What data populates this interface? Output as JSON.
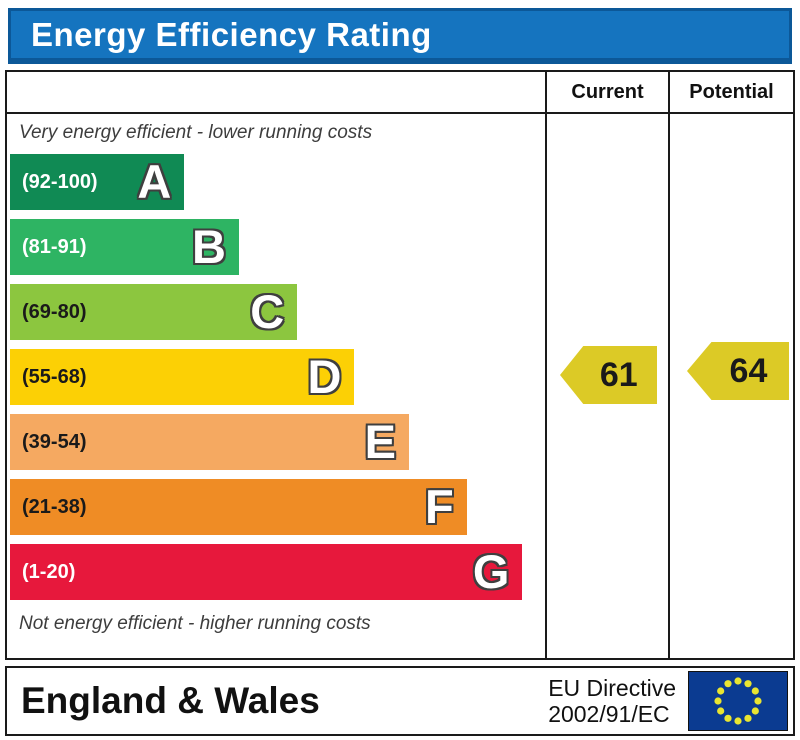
{
  "title": "Energy Efficiency Rating",
  "columns": {
    "current": "Current",
    "potential": "Potential"
  },
  "captions": {
    "top": "Very energy efficient - lower running costs",
    "bottom": "Not energy efficient - higher running costs"
  },
  "bands": [
    {
      "letter": "A",
      "range": "(92-100)",
      "color": "#108a54",
      "label_color": "#ffffff",
      "width_pct": 33.2
    },
    {
      "letter": "B",
      "range": "(81-91)",
      "color": "#2eb463",
      "label_color": "#ffffff",
      "width_pct": 43.6
    },
    {
      "letter": "C",
      "range": "(69-80)",
      "color": "#8cc63f",
      "label_color": "#1a1a1a",
      "width_pct": 54.7
    },
    {
      "letter": "D",
      "range": "(55-68)",
      "color": "#fcd005",
      "label_color": "#1a1a1a",
      "width_pct": 65.6
    },
    {
      "letter": "E",
      "range": "(39-54)",
      "color": "#f5a961",
      "label_color": "#1a1a1a",
      "width_pct": 76.0
    },
    {
      "letter": "F",
      "range": "(21-38)",
      "color": "#ef8c25",
      "label_color": "#1a1a1a",
      "width_pct": 87.0
    },
    {
      "letter": "G",
      "range": "(1-20)",
      "color": "#e7183c",
      "label_color": "#ffffff",
      "width_pct": 97.6
    }
  ],
  "ratings": {
    "current": "61",
    "potential": "64",
    "arrow_color": "#dcca26",
    "text_color": "#1a1a1a"
  },
  "footer": {
    "region": "England & Wales",
    "directive_line1": "EU Directive",
    "directive_line2": "2002/91/EC"
  },
  "eu_flag": {
    "bg": "#0b3b91",
    "star_color": "#e9e531"
  },
  "chart_data": {
    "type": "bar",
    "title": "Energy Efficiency Rating",
    "categories": [
      "A",
      "B",
      "C",
      "D",
      "E",
      "F",
      "G"
    ],
    "band_ranges": [
      "92-100",
      "81-91",
      "69-80",
      "55-68",
      "39-54",
      "21-38",
      "1-20"
    ],
    "band_colors": [
      "#108a54",
      "#2eb463",
      "#8cc63f",
      "#fcd005",
      "#f5a961",
      "#ef8c25",
      "#e7183c"
    ],
    "bar_lengths_pct": [
      33.2,
      43.6,
      54.7,
      65.6,
      76.0,
      87.0,
      97.6
    ],
    "scale": [
      1,
      100
    ],
    "series": [
      {
        "name": "Current",
        "value": 61,
        "band": "D"
      },
      {
        "name": "Potential",
        "value": 64,
        "band": "D"
      }
    ],
    "top_annotation": "Very energy efficient - lower running costs",
    "bottom_annotation": "Not energy efficient - higher running costs",
    "footer": "England & Wales — EU Directive 2002/91/EC",
    "legend_position": "none",
    "grid": false
  }
}
